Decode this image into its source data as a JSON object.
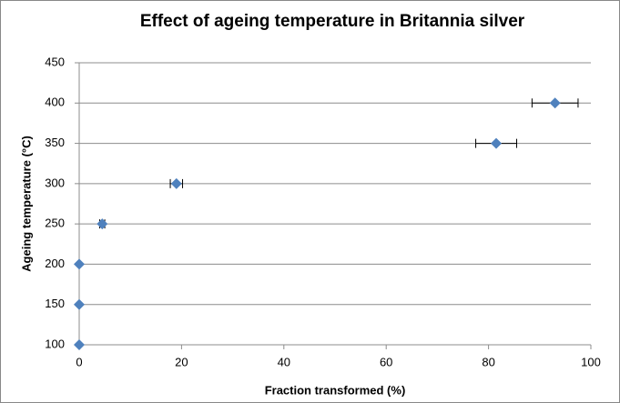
{
  "chart_data": {
    "type": "scatter",
    "title": "Effect of ageing temperature in Britannia silver",
    "x_label": "Fraction transformed (%)",
    "y_label": "Ageing temperature (°C)",
    "x": [
      0,
      0,
      0,
      4.5,
      19,
      81.5,
      93
    ],
    "y": [
      100,
      150,
      200,
      250,
      300,
      350,
      400
    ],
    "xerr": [
      0,
      0,
      0,
      0.5,
      1.2,
      4,
      4.5
    ],
    "color": "#4f81bd",
    "xlim": [
      0,
      100
    ],
    "xticks": [
      0,
      20,
      40,
      60,
      80,
      100
    ],
    "ylim": [
      100,
      450
    ],
    "yticks": [
      100,
      150,
      200,
      250,
      300,
      350,
      400,
      450
    ],
    "grid": true
  }
}
